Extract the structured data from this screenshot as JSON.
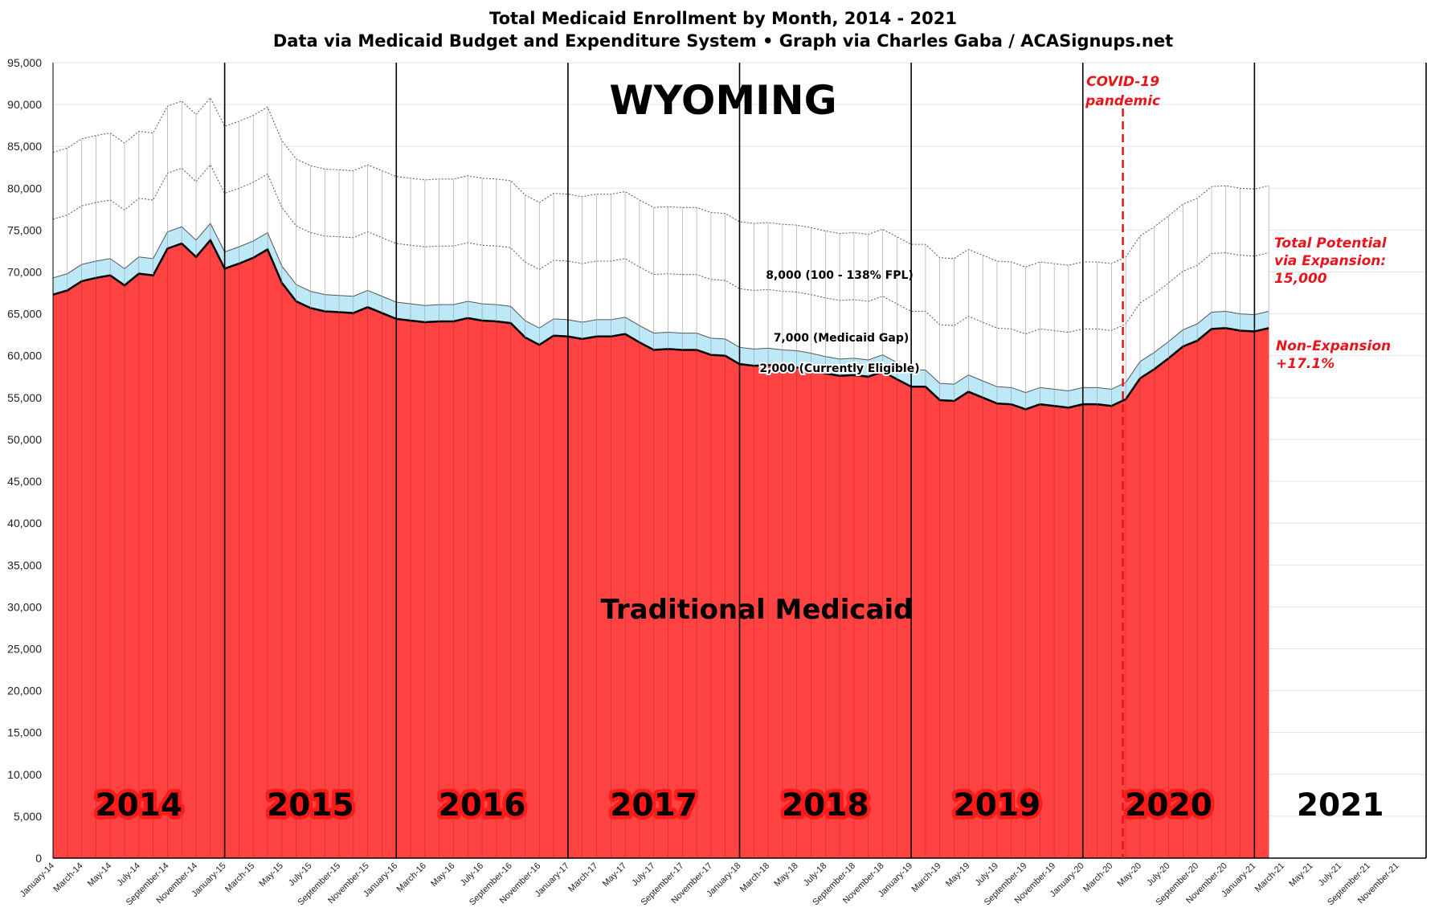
{
  "chart_data": {
    "type": "area",
    "title": "Total Medicaid Enrollment by Month, 2014 - 2021",
    "subtitle": "Data via Medicaid Budget and Expenditure System  •  Graph via Charles Gaba / ACASignups.net",
    "state_label": "WYOMING",
    "ylim": [
      0,
      95000
    ],
    "y_ticks": [
      "0",
      "5,000",
      "10,000",
      "15,000",
      "20,000",
      "25,000",
      "30,000",
      "35,000",
      "40,000",
      "45,000",
      "50,000",
      "55,000",
      "60,000",
      "65,000",
      "70,000",
      "75,000",
      "80,000",
      "85,000",
      "90,000",
      "95,000"
    ],
    "x_tick_labels": [
      "January-14",
      "March-14",
      "May-14",
      "July-14",
      "September-14",
      "November-14",
      "January-15",
      "March-15",
      "May-15",
      "July-15",
      "September-15",
      "November-15",
      "January-16",
      "March-16",
      "May-16",
      "July-16",
      "September-16",
      "November-16",
      "January-17",
      "March-17",
      "May-17",
      "July-17",
      "September-17",
      "November-17",
      "January-18",
      "March-18",
      "May-18",
      "July-18",
      "September-18",
      "November-18",
      "January-19",
      "March-19",
      "May-19",
      "July-19",
      "September-19",
      "November-19",
      "January-20",
      "March-20",
      "May-20",
      "July-20",
      "September-20",
      "November-20",
      "January-21",
      "March-21",
      "May-21",
      "July-21",
      "September-21",
      "November-21"
    ],
    "total_months": 96,
    "years": [
      "2014",
      "2015",
      "2016",
      "2017",
      "2018",
      "2019",
      "2020",
      "2021"
    ],
    "series": [
      {
        "name": "Traditional Medicaid",
        "color": "#ff4242",
        "values": [
          67300,
          67800,
          68900,
          69300,
          69600,
          68400,
          69800,
          69600,
          72800,
          73400,
          71800,
          73800,
          70400,
          71000,
          71700,
          72700,
          68700,
          66500,
          65700,
          65300,
          65200,
          65100,
          65800,
          65100,
          64400,
          64200,
          64000,
          64100,
          64100,
          64500,
          64200,
          64100,
          63900,
          62200,
          61300,
          62400,
          62300,
          62000,
          62300,
          62300,
          62600,
          61600,
          60700,
          60800,
          60700,
          60700,
          60100,
          60000,
          59000,
          58800,
          58900,
          58700,
          58600,
          58300,
          57900,
          57600,
          57700,
          57500,
          58100,
          57200,
          56300,
          56300,
          54700,
          54600,
          55700,
          55000,
          54300,
          54200,
          53600,
          54200,
          54000,
          53800,
          54200,
          54200,
          54000,
          54800,
          57300,
          58400,
          59700,
          61100,
          61800,
          63200,
          63300,
          63000,
          62900,
          63300
        ]
      },
      {
        "name": "2,000 (Currently Eligible)",
        "color": "#bde8f7",
        "values": [
          2000,
          2000,
          2000,
          2000,
          2000,
          2000,
          2000,
          2000,
          2000,
          2000,
          2000,
          2000,
          2000,
          2000,
          2000,
          2000,
          2000,
          2000,
          2000,
          2000,
          2000,
          2000,
          2000,
          2000,
          2000,
          2000,
          2000,
          2000,
          2000,
          2000,
          2000,
          2000,
          2000,
          2000,
          2000,
          2000,
          2000,
          2000,
          2000,
          2000,
          2000,
          2000,
          2000,
          2000,
          2000,
          2000,
          2000,
          2000,
          2000,
          2000,
          2000,
          2000,
          2000,
          2000,
          2000,
          2000,
          2000,
          2000,
          2000,
          2000,
          2000,
          2000,
          2000,
          2000,
          2000,
          2000,
          2000,
          2000,
          2000,
          2000,
          2000,
          2000,
          2000,
          2000,
          2000,
          2000,
          2000,
          2000,
          2000,
          2000,
          2000,
          2000,
          2000,
          2000,
          2000,
          2000
        ]
      },
      {
        "name": "7,000 (Medicaid Gap)",
        "color": "#ffffff",
        "values": [
          7000,
          7000,
          7000,
          7000,
          7000,
          7000,
          7000,
          7000,
          7000,
          7000,
          7000,
          7000,
          7000,
          7000,
          7000,
          7000,
          7000,
          7000,
          7000,
          7000,
          7000,
          7000,
          7000,
          7000,
          7000,
          7000,
          7000,
          7000,
          7000,
          7000,
          7000,
          7000,
          7000,
          7000,
          7000,
          7000,
          7000,
          7000,
          7000,
          7000,
          7000,
          7000,
          7000,
          7000,
          7000,
          7000,
          7000,
          7000,
          7000,
          7000,
          7000,
          7000,
          7000,
          7000,
          7000,
          7000,
          7000,
          7000,
          7000,
          7000,
          7000,
          7000,
          7000,
          7000,
          7000,
          7000,
          7000,
          7000,
          7000,
          7000,
          7000,
          7000,
          7000,
          7000,
          7000,
          7000,
          7000,
          7000,
          7000,
          7000,
          7000,
          7000,
          7000,
          7000,
          7000,
          7000
        ]
      },
      {
        "name": "8,000 (100 - 138% FPL)",
        "color": "#ffffff",
        "values": [
          8000,
          8000,
          8000,
          8000,
          8000,
          8000,
          8000,
          8000,
          8000,
          8000,
          8000,
          8000,
          8000,
          8000,
          8000,
          8000,
          8000,
          8000,
          8000,
          8000,
          8000,
          8000,
          8000,
          8000,
          8000,
          8000,
          8000,
          8000,
          8000,
          8000,
          8000,
          8000,
          8000,
          8000,
          8000,
          8000,
          8000,
          8000,
          8000,
          8000,
          8000,
          8000,
          8000,
          8000,
          8000,
          8000,
          8000,
          8000,
          8000,
          8000,
          8000,
          8000,
          8000,
          8000,
          8000,
          8000,
          8000,
          8000,
          8000,
          8000,
          8000,
          8000,
          8000,
          8000,
          8000,
          8000,
          8000,
          8000,
          8000,
          8000,
          8000,
          8000,
          8000,
          8000,
          8000,
          8000,
          8000,
          8000,
          8000,
          8000,
          8000,
          8000,
          8000,
          8000,
          8000,
          8000
        ]
      }
    ],
    "center_label": "Traditional Medicaid",
    "covid_month_index": 74.8,
    "covid_label": [
      "COVID-19",
      "pandemic"
    ],
    "total_potential_label": [
      "Total Potential",
      "via Expansion:",
      "15,000"
    ],
    "non_expansion_label": [
      "Non-Expansion",
      "+17.1%"
    ]
  }
}
